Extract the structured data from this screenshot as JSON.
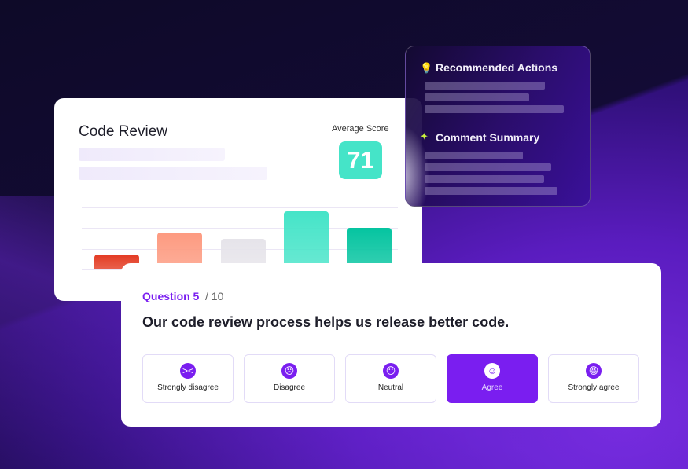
{
  "review_card": {
    "title": "Code Review",
    "average_label": "Average Score",
    "average_score": "71",
    "bars": [
      {
        "level": 0.25,
        "color": "#e33a22"
      },
      {
        "level": 0.6,
        "color": "#fd9a80"
      },
      {
        "level": 0.5,
        "color": "#e6e4ea"
      },
      {
        "level": 0.95,
        "color": "#45e4c8"
      },
      {
        "level": 0.68,
        "color": "#05c4a0"
      }
    ]
  },
  "insights": {
    "recommended": {
      "title": "Recommended Actions",
      "icon": "lightbulb-icon"
    },
    "summary": {
      "title": "Comment Summary",
      "icon": "sparkle-icon"
    }
  },
  "question": {
    "number": "Question 5",
    "total": "/ 10",
    "text": "Our code review process helps us release better code.",
    "options": [
      {
        "label": "Strongly disagree",
        "icon": "angry-face-icon",
        "glyph": "><"
      },
      {
        "label": "Disagree",
        "icon": "frown-face-icon",
        "glyph": "☹"
      },
      {
        "label": "Neutral",
        "icon": "neutral-face-icon",
        "glyph": "😐"
      },
      {
        "label": "Agree",
        "icon": "smile-face-icon",
        "glyph": "☺",
        "selected": true
      },
      {
        "label": "Strongly agree",
        "icon": "laugh-face-icon",
        "glyph": "😆"
      }
    ]
  },
  "accent": "#7a1ef0"
}
